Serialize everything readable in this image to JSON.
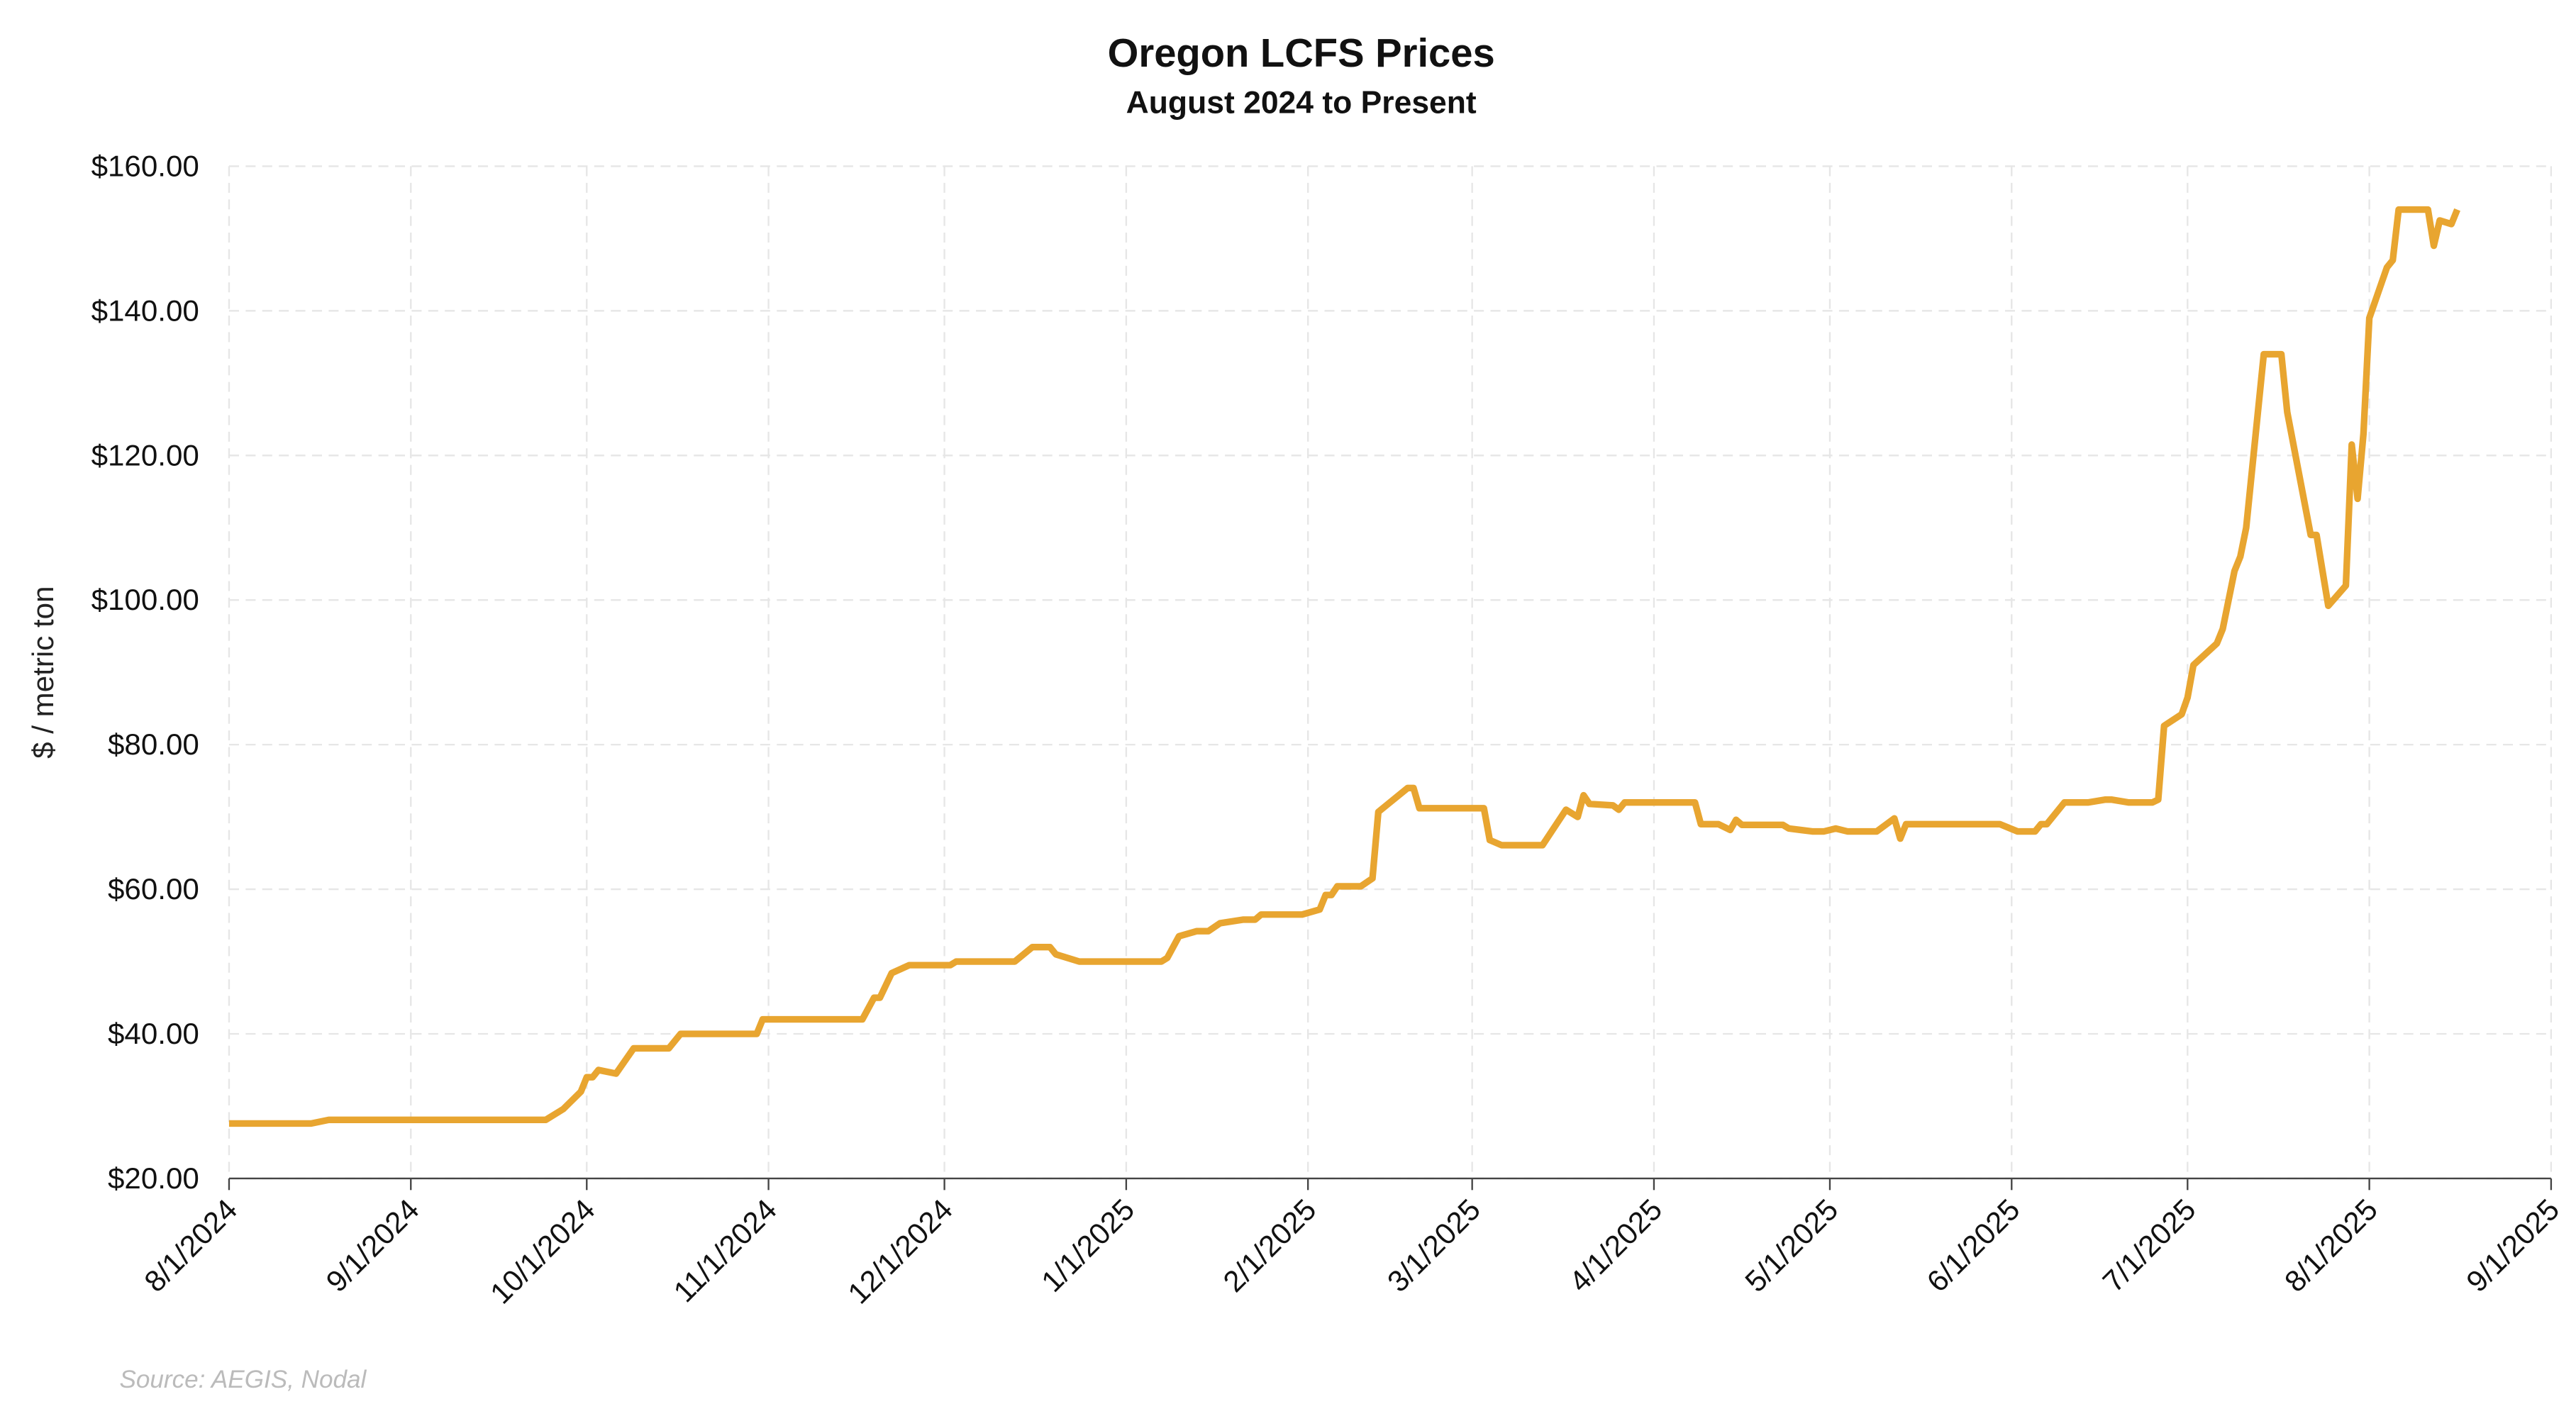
{
  "chart_data": {
    "type": "line",
    "title": "Oregon LCFS Prices",
    "subtitle": "August 2024 to Present",
    "y_label": "$ / metric ton",
    "source": "Source: AEGIS, Nodal",
    "grid": true,
    "xlim": [
      "2024-08-01",
      "2025-09-01"
    ],
    "xticks": [
      {
        "value": "2024-08-01",
        "label": "8/1/2024"
      },
      {
        "value": "2024-09-01",
        "label": "9/1/2024"
      },
      {
        "value": "2024-10-01",
        "label": "10/1/2024"
      },
      {
        "value": "2024-11-01",
        "label": "11/1/2024"
      },
      {
        "value": "2024-12-01",
        "label": "12/1/2024"
      },
      {
        "value": "2025-01-01",
        "label": "1/1/2025"
      },
      {
        "value": "2025-02-01",
        "label": "2/1/2025"
      },
      {
        "value": "2025-03-01",
        "label": "3/1/2025"
      },
      {
        "value": "2025-04-01",
        "label": "4/1/2025"
      },
      {
        "value": "2025-05-01",
        "label": "5/1/2025"
      },
      {
        "value": "2025-06-01",
        "label": "6/1/2025"
      },
      {
        "value": "2025-07-01",
        "label": "7/1/2025"
      },
      {
        "value": "2025-08-01",
        "label": "8/1/2025"
      },
      {
        "value": "2025-09-01",
        "label": "9/1/2025"
      }
    ],
    "ylim": [
      20,
      160
    ],
    "yticks": [
      {
        "value": 20,
        "label": "$20.00"
      },
      {
        "value": 40,
        "label": "$40.00"
      },
      {
        "value": 60,
        "label": "$60.00"
      },
      {
        "value": 80,
        "label": "$80.00"
      },
      {
        "value": 100,
        "label": "$100.00"
      },
      {
        "value": 120,
        "label": "$120.00"
      },
      {
        "value": 140,
        "label": "$140.00"
      },
      {
        "value": 160,
        "label": "$160.00"
      }
    ],
    "x": [
      "2024-08-01",
      "2024-08-15",
      "2024-08-18",
      "2024-09-24",
      "2024-09-27",
      "2024-09-30",
      "2024-10-01",
      "2024-10-02",
      "2024-10-03",
      "2024-10-06",
      "2024-10-09",
      "2024-10-15",
      "2024-10-17",
      "2024-10-30",
      "2024-10-31",
      "2024-11-17",
      "2024-11-19",
      "2024-11-20",
      "2024-11-22",
      "2024-11-25",
      "2024-12-02",
      "2024-12-03",
      "2024-12-13",
      "2024-12-16",
      "2024-12-19",
      "2024-12-20",
      "2024-12-24",
      "2025-01-07",
      "2025-01-08",
      "2025-01-10",
      "2025-01-13",
      "2025-01-15",
      "2025-01-17",
      "2025-01-21",
      "2025-01-23",
      "2025-01-24",
      "2025-01-31",
      "2025-02-03",
      "2025-02-04",
      "2025-02-05",
      "2025-02-06",
      "2025-02-10",
      "2025-02-12",
      "2025-02-13",
      "2025-02-18",
      "2025-02-19",
      "2025-02-20",
      "2025-03-03",
      "2025-03-04",
      "2025-03-06",
      "2025-03-13",
      "2025-03-17",
      "2025-03-19",
      "2025-03-20",
      "2025-03-21",
      "2025-03-25",
      "2025-03-26",
      "2025-03-27",
      "2025-04-08",
      "2025-04-09",
      "2025-04-12",
      "2025-04-14",
      "2025-04-15",
      "2025-04-16",
      "2025-04-23",
      "2025-04-24",
      "2025-04-28",
      "2025-04-30",
      "2025-05-02",
      "2025-05-04",
      "2025-05-09",
      "2025-05-12",
      "2025-05-13",
      "2025-05-14",
      "2025-05-30",
      "2025-06-02",
      "2025-06-05",
      "2025-06-06",
      "2025-06-07",
      "2025-06-10",
      "2025-06-14",
      "2025-06-17",
      "2025-06-18",
      "2025-06-21",
      "2025-06-25",
      "2025-06-26",
      "2025-06-27",
      "2025-06-30",
      "2025-07-01",
      "2025-07-02",
      "2025-07-06",
      "2025-07-07",
      "2025-07-09",
      "2025-07-10",
      "2025-07-11",
      "2025-07-14",
      "2025-07-17",
      "2025-07-18",
      "2025-07-22",
      "2025-07-23",
      "2025-07-25",
      "2025-07-28",
      "2025-07-29",
      "2025-07-30",
      "2025-07-31",
      "2025-08-01",
      "2025-08-04",
      "2025-08-05",
      "2025-08-06",
      "2025-08-11",
      "2025-08-12",
      "2025-08-13",
      "2025-08-15",
      "2025-08-16"
    ],
    "series": [
      {
        "name": "Oregon LCFS",
        "color": "#e8a530",
        "values": [
          27.6,
          27.6,
          28.1,
          28.1,
          29.6,
          32,
          34,
          34,
          35,
          34.5,
          38,
          38,
          40,
          40,
          42,
          42,
          45,
          45,
          48.4,
          49.5,
          49.5,
          50,
          50,
          52,
          52,
          51,
          50,
          50,
          50.5,
          53.5,
          54.2,
          54.2,
          55.3,
          55.8,
          55.8,
          56.5,
          56.5,
          57.2,
          59.2,
          59.2,
          60.4,
          60.4,
          61.5,
          70.7,
          74,
          74,
          71.2,
          71.2,
          66.8,
          66.1,
          66.1,
          71,
          70,
          73,
          71.8,
          71.6,
          71,
          72,
          72,
          69,
          69,
          68.2,
          69.6,
          68.9,
          68.9,
          68.4,
          68,
          68,
          68.4,
          68,
          68,
          69.8,
          67,
          69,
          69,
          68,
          68,
          69,
          69,
          72,
          72,
          72.4,
          72.4,
          72,
          72,
          72.4,
          82.6,
          84.2,
          86.5,
          91,
          94,
          96,
          104,
          106,
          110,
          134,
          134,
          126,
          109,
          109,
          99.2,
          102,
          121.5,
          114,
          123,
          139,
          146,
          147,
          154,
          154,
          149,
          152.5,
          152,
          154
        ]
      }
    ]
  }
}
